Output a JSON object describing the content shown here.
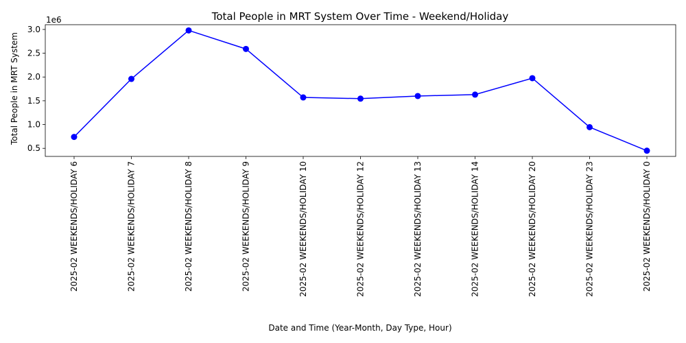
{
  "chart_data": {
    "type": "line",
    "title": "Total People in MRT System Over Time - Weekend/Holiday",
    "xlabel": "Date and Time (Year-Month, Day Type, Hour)",
    "ylabel": "Total People in MRT System",
    "y_offset_label": "1e6",
    "categories": [
      "2025-02 WEEKENDS/HOLIDAY 6",
      "2025-02 WEEKENDS/HOLIDAY 7",
      "2025-02 WEEKENDS/HOLIDAY 8",
      "2025-02 WEEKENDS/HOLIDAY 9",
      "2025-02 WEEKENDS/HOLIDAY 10",
      "2025-02 WEEKENDS/HOLIDAY 12",
      "2025-02 WEEKENDS/HOLIDAY 13",
      "2025-02 WEEKENDS/HOLIDAY 14",
      "2025-02 WEEKENDS/HOLIDAY 20",
      "2025-02 WEEKENDS/HOLIDAY 23",
      "2025-02 WEEKENDS/HOLIDAY 0"
    ],
    "values": [
      740000,
      1960000,
      2980000,
      2590000,
      1570000,
      1545000,
      1600000,
      1630000,
      1975000,
      945000,
      450000
    ],
    "yticks": [
      0.5,
      1.0,
      1.5,
      2.0,
      2.5,
      3.0
    ],
    "ytick_labels": [
      "0.5",
      "1.0",
      "1.5",
      "2.0",
      "2.5",
      "3.0"
    ],
    "ylim": [
      330000,
      3100000
    ],
    "grid": false,
    "line_color": "#0000ff",
    "marker_color": "#0000ff"
  }
}
